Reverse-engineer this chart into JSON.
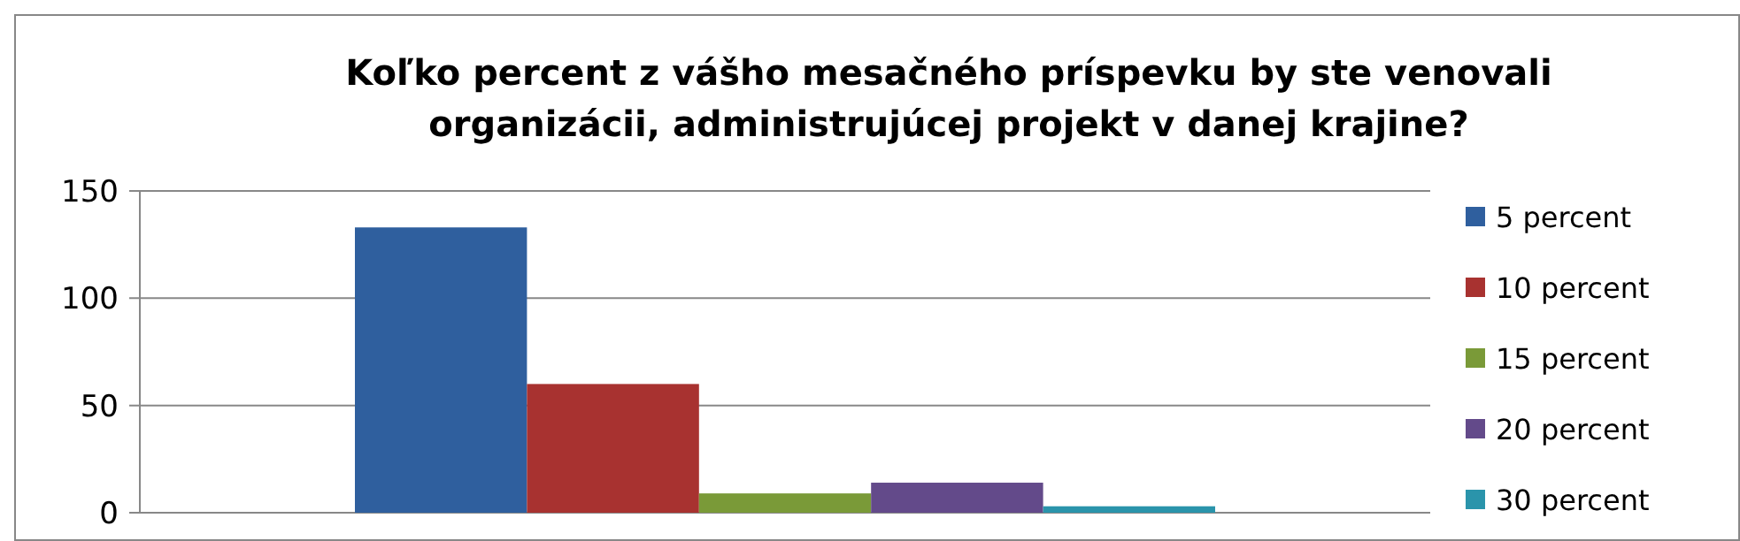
{
  "chart_data": {
    "type": "bar",
    "title": "Koľko percent z vášho mesačného príspevku by ste venovali organizácii, administrujúcej projekt v danej krajine?",
    "categories": [
      null
    ],
    "series": [
      {
        "name": "5 percent",
        "color": "#2f5f9e",
        "values": [
          133
        ]
      },
      {
        "name": "10 percent",
        "color": "#a83230",
        "values": [
          60
        ]
      },
      {
        "name": "15 percent",
        "color": "#7a9a38",
        "values": [
          9
        ]
      },
      {
        "name": "20 percent",
        "color": "#634a8a",
        "values": [
          14
        ]
      },
      {
        "name": "30 percent",
        "color": "#2a94ab",
        "values": [
          3
        ]
      }
    ],
    "ylim": [
      0,
      150
    ],
    "yticks": [
      0,
      50,
      100,
      150
    ],
    "grid": "y",
    "legend": "right"
  }
}
